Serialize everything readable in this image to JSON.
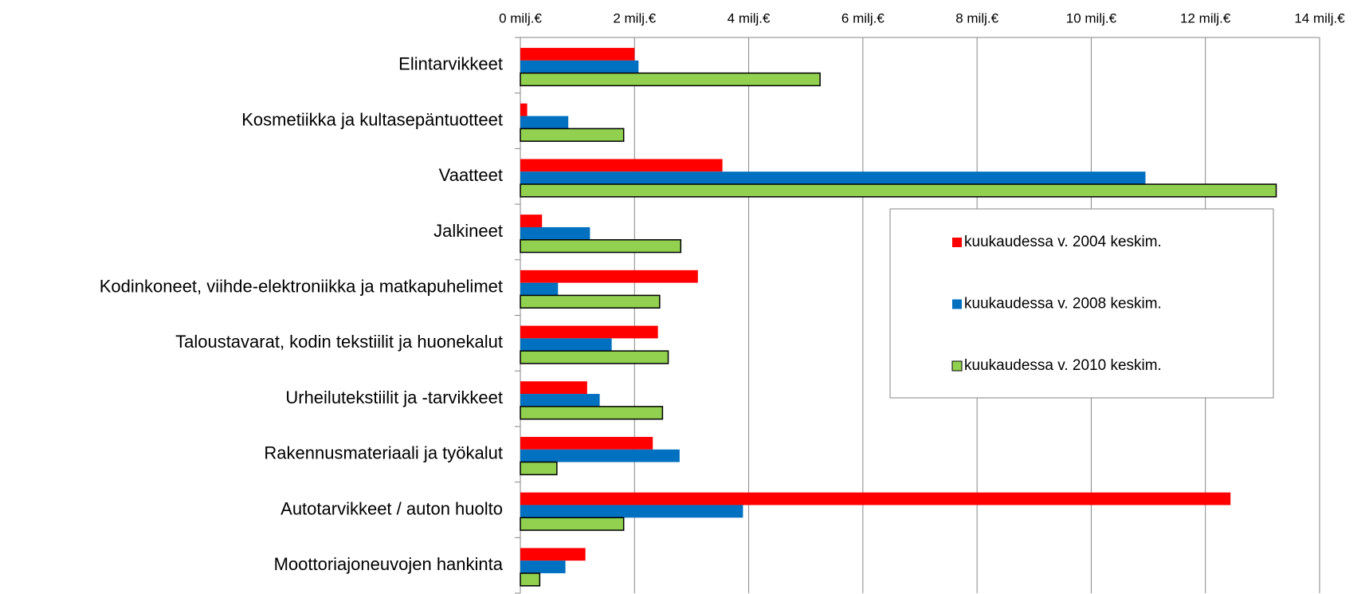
{
  "chart_data": {
    "type": "barh",
    "categories": [
      "Elintarvikkeet",
      "Kosmetiikka ja kultasepäntuotteet",
      "Vaatteet",
      "Jalkineet",
      "Kodinkoneet, viihde-elektroniikka ja matkapuhelimet",
      "Taloustavarat, kodin tekstiilit ja huonekalut",
      "Urheilutekstiilit ja -tarvikkeet",
      "Rakennusmateriaali ja työkalut",
      "Autotarvikkeet / auton huolto",
      "Moottoriajoneuvojen hankinta"
    ],
    "series": [
      {
        "name": "kuukaudessa v. 2004 keskim.",
        "color": "#ff0000",
        "values": [
          2.0,
          0.12,
          3.54,
          0.38,
          3.11,
          2.41,
          1.17,
          2.32,
          12.44,
          1.14
        ]
      },
      {
        "name": "kuukaudessa v. 2008 keskim.",
        "color": "#0070c0",
        "values": [
          2.07,
          0.84,
          10.95,
          1.22,
          0.66,
          1.6,
          1.39,
          2.79,
          3.9,
          0.79
        ]
      },
      {
        "name": "kuukaudessa v. 2010 keskim.",
        "color": "#92d050",
        "values": [
          5.25,
          1.81,
          13.24,
          2.81,
          2.44,
          2.59,
          2.49,
          0.64,
          1.81,
          0.34
        ]
      }
    ],
    "xlim": [
      0,
      14
    ],
    "xticks": [
      {
        "value": 0,
        "label": "0 milj.€"
      },
      {
        "value": 2,
        "label": "2 milj.€"
      },
      {
        "value": 4,
        "label": "4 milj.€"
      },
      {
        "value": 6,
        "label": "6 milj.€"
      },
      {
        "value": 8,
        "label": "8 milj.€"
      },
      {
        "value": 10,
        "label": "10 milj.€"
      },
      {
        "value": 12,
        "label": "12 milj.€"
      },
      {
        "value": 14,
        "label": "14 milj.€"
      }
    ],
    "grid": true
  }
}
